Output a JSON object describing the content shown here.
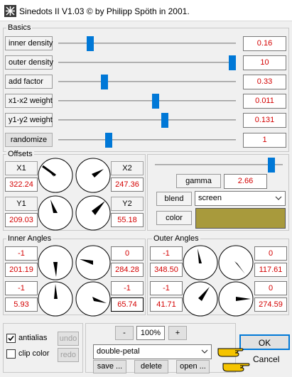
{
  "window": {
    "title": "Sinedots II V1.03 © by Philipp Spöth in 2001."
  },
  "basics": {
    "label": "Basics",
    "rows": [
      {
        "label": "inner density",
        "value": "0.16",
        "slider": 0.09
      },
      {
        "label": "outer density",
        "value": "10",
        "slider": 1.0
      },
      {
        "label": "add factor",
        "value": "0.33",
        "slider": 0.18
      },
      {
        "label": "x1-x2 weight",
        "value": "0.011",
        "slider": 0.51
      },
      {
        "label": "y1-y2 weight",
        "value": "0.131",
        "slider": 0.57
      },
      {
        "label": "randomize",
        "value": "1",
        "slider": 0.21
      }
    ]
  },
  "offsets": {
    "label": "Offsets",
    "x1": {
      "label": "X1",
      "value": "322.24"
    },
    "x2": {
      "label": "X2",
      "value": "247.36"
    },
    "y1": {
      "label": "Y1",
      "value": "209.03"
    },
    "y2": {
      "label": "Y2",
      "value": "55.18"
    }
  },
  "render": {
    "gamma_label": "gamma",
    "gamma_value": "2.66",
    "gamma_slider": 0.98,
    "blend_label": "blend",
    "blend_value": "screen",
    "color_label": "color",
    "color_swatch": "#a89a3c"
  },
  "inner_angles": {
    "label": "Inner Angles",
    "cells": [
      {
        "mult": "-1",
        "value": "201.19"
      },
      {
        "mult": "0",
        "value": "284.28"
      },
      {
        "mult": "-1",
        "value": "5.93"
      },
      {
        "mult": "-1",
        "value": "65.74"
      }
    ]
  },
  "outer_angles": {
    "label": "Outer Angles",
    "cells": [
      {
        "mult": "-1",
        "value": "348.50"
      },
      {
        "mult": "0",
        "value": "117.61"
      },
      {
        "mult": "-1",
        "value": "41.71"
      },
      {
        "mult": "0",
        "value": "274.59"
      }
    ]
  },
  "bottom": {
    "antialias_label": "antialias",
    "antialias_checked": true,
    "clipcolor_label": "clip color",
    "clipcolor_checked": false,
    "undo_label": "undo",
    "redo_label": "redo",
    "zoom_minus": "-",
    "zoom_value": "100%",
    "zoom_plus": "+",
    "preset_value": "double-petal",
    "save_label": "save ...",
    "delete_label": "delete",
    "open_label": "open ...",
    "ok_label": "OK",
    "cancel_label": "Cancel"
  },
  "icons": [
    "app-icon",
    "checkmark-icon",
    "chevron-down-icon",
    "pointing-hand-icon",
    "dial-icon"
  ]
}
